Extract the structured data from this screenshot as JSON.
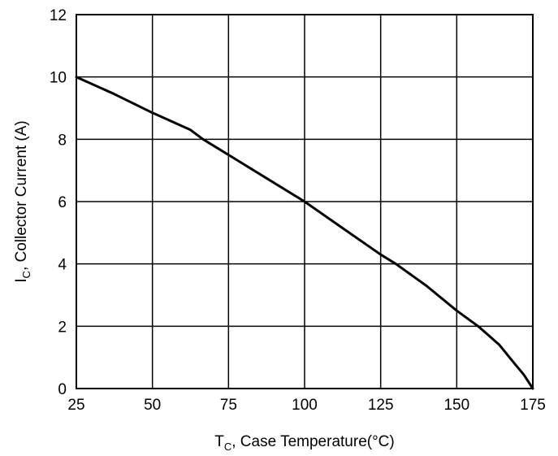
{
  "chart_data": {
    "type": "line",
    "title": "",
    "xlabel": "T_C, Case Temperature(°C)",
    "ylabel": "I_C, Collector Current (A)",
    "xlabel_parts": {
      "main": "T",
      "sub": "C",
      "rest": ", Case Temperature(°C)"
    },
    "ylabel_parts": {
      "main": "I",
      "sub": "C",
      "rest": ", Collector Current (A)"
    },
    "xlim": [
      25,
      175
    ],
    "ylim": [
      0,
      12
    ],
    "xticks": [
      25,
      50,
      75,
      100,
      125,
      150,
      175
    ],
    "yticks": [
      0,
      2,
      4,
      6,
      8,
      10,
      12
    ],
    "grid": true,
    "legend": null,
    "series": [
      {
        "name": "I_C",
        "color": "#000000",
        "x": [
          25,
          37.5,
          50,
          62.5,
          66.6,
          75,
          87.5,
          100,
          112.5,
          125,
          130,
          140,
          150,
          157,
          164,
          169,
          172,
          175
        ],
        "y": [
          10.0,
          9.45,
          8.85,
          8.3,
          8.0,
          7.5,
          6.75,
          6.0,
          5.15,
          4.3,
          4.0,
          3.3,
          2.5,
          2.0,
          1.4,
          0.8,
          0.45,
          0.0
        ]
      }
    ]
  }
}
